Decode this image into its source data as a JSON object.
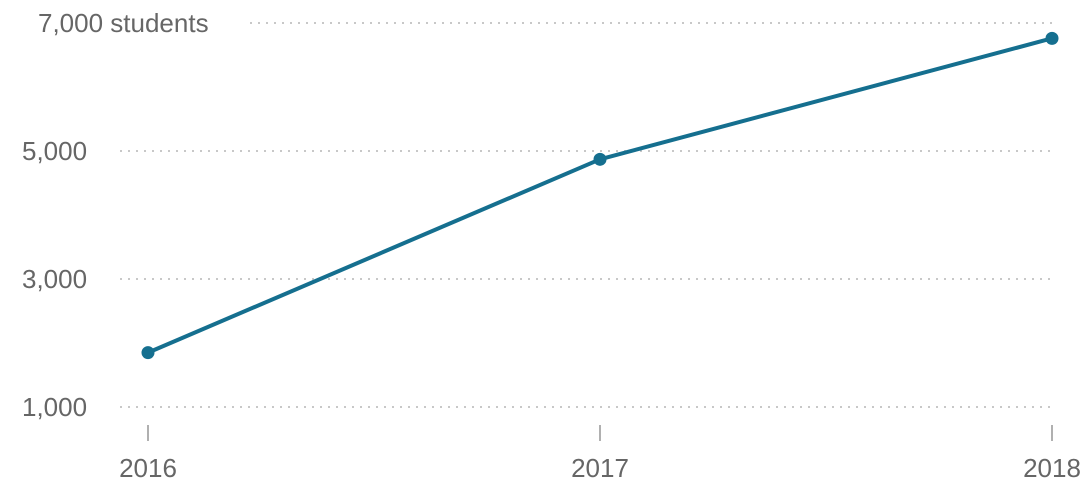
{
  "chart_data": {
    "type": "line",
    "x": [
      "2016",
      "2017",
      "2018"
    ],
    "series": [
      {
        "values": [
          1850,
          4870,
          6760
        ]
      }
    ],
    "yticks": [
      {
        "value": 7000,
        "label": "7,000 students"
      },
      {
        "value": 5000,
        "label": "5,000"
      },
      {
        "value": 3000,
        "label": "3,000"
      },
      {
        "value": 1000,
        "label": "1,000"
      }
    ],
    "ylim": [
      1000,
      7000
    ],
    "grid": "horizontal-dotted",
    "color": "#156f8f"
  }
}
